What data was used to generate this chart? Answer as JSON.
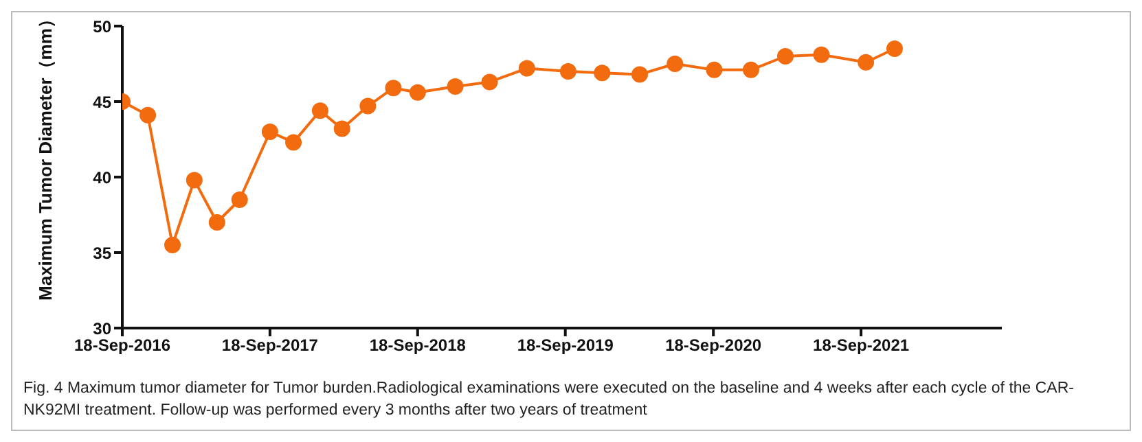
{
  "chart_data": {
    "type": "line",
    "ylabel": "Maximum Tumor Diameter（mm）",
    "x": [
      "2016-09-18",
      "2016-11-20",
      "2017-01-20",
      "2017-03-15",
      "2017-05-10",
      "2017-07-05",
      "2017-09-18",
      "2017-11-15",
      "2018-01-20",
      "2018-03-15",
      "2018-05-18",
      "2018-07-20",
      "2018-09-18",
      "2018-12-20",
      "2019-03-15",
      "2019-06-15",
      "2019-09-25",
      "2019-12-18",
      "2020-03-20",
      "2020-06-15",
      "2020-09-20",
      "2020-12-20",
      "2021-03-15",
      "2021-06-12",
      "2021-09-30",
      "2021-12-10"
    ],
    "series": [
      {
        "color": "#f26b0f",
        "values": [
          45.0,
          44.1,
          35.5,
          39.8,
          37.0,
          38.5,
          43.0,
          42.3,
          44.4,
          43.2,
          44.7,
          45.9,
          45.6,
          46.0,
          46.3,
          47.2,
          47.0,
          46.9,
          46.8,
          47.5,
          47.1,
          47.1,
          48.0,
          48.1,
          47.6,
          48.5
        ]
      }
    ],
    "xlim": [
      "2016-09-18",
      "2022-09-01"
    ],
    "xticks": [
      {
        "value": "2016-09-18",
        "label": "18-Sep-2016"
      },
      {
        "value": "2017-09-18",
        "label": "18-Sep-2017"
      },
      {
        "value": "2018-09-18",
        "label": "18-Sep-2018"
      },
      {
        "value": "2019-09-18",
        "label": "18-Sep-2019"
      },
      {
        "value": "2020-09-18",
        "label": "18-Sep-2020"
      },
      {
        "value": "2021-09-18",
        "label": "18-Sep-2021"
      }
    ],
    "ylim": [
      30,
      50
    ],
    "yticks": [
      30,
      35,
      40,
      45,
      50
    ],
    "marker": "circle",
    "line_style": "solid",
    "grid": false,
    "legend": false,
    "annotations": [
      "Fig. 4  Maximum tumor diameter for Tumor burden.Radiological examinations were executed on the baseline and 4 weeks after each cycle of the CAR-NK92MI treatment. Follow-up was performed every 3 months after two years of treatment"
    ]
  }
}
